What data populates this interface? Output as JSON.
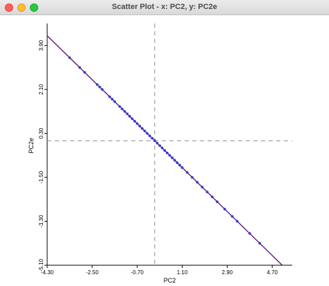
{
  "window": {
    "title": "Scatter Plot - x: PC2, y: PC2e",
    "colors": {
      "close": "#ff5f57",
      "minimize": "#febc2e",
      "maximize": "#28c840"
    }
  },
  "chart_data": {
    "type": "scatter",
    "xlabel": "PC2",
    "ylabel": "PC2e",
    "xlim": [
      -4.3,
      5.5
    ],
    "ylim": [
      -5.1,
      4.8
    ],
    "x_ticks": [
      -4.3,
      -2.5,
      -0.7,
      1.1,
      2.9,
      4.7
    ],
    "x_tick_labels": [
      "-4.30",
      "-2.50",
      "-0.70",
      "1.10",
      "2.90",
      "4.70"
    ],
    "y_ticks": [
      -5.1,
      -3.3,
      -1.5,
      0.3,
      2.1,
      3.9
    ],
    "y_tick_labels": [
      "-5.10",
      "-3.30",
      "-1.50",
      "0.30",
      "2.10",
      "3.90"
    ],
    "mean_lines": {
      "x": 0.0,
      "y": 0.0
    },
    "fit_line": {
      "slope": -1,
      "intercept": 0
    },
    "point_color": "#3a3ad0",
    "line_color": "#5a1a6a",
    "x": [
      -3.4,
      -3.0,
      -2.8,
      -2.3,
      -2.2,
      -2.1,
      -1.8,
      -1.7,
      -1.6,
      -1.4,
      -1.3,
      -1.2,
      -1.1,
      -1.0,
      -0.9,
      -0.8,
      -0.7,
      -0.6,
      -0.5,
      -0.4,
      -0.3,
      -0.2,
      -0.1,
      0.0,
      0.1,
      0.2,
      0.3,
      0.4,
      0.5,
      0.6,
      0.7,
      0.8,
      0.9,
      1.0,
      1.1,
      1.3,
      1.5,
      1.7,
      1.9,
      2.1,
      2.3,
      2.5,
      2.8,
      3.1,
      3.3,
      3.8,
      4.2
    ],
    "y": [
      3.4,
      3.0,
      2.8,
      2.3,
      2.2,
      2.1,
      1.8,
      1.7,
      1.6,
      1.4,
      1.3,
      1.2,
      1.1,
      1.0,
      0.9,
      0.8,
      0.7,
      0.6,
      0.5,
      0.4,
      0.3,
      0.2,
      0.1,
      0.0,
      -0.1,
      -0.2,
      -0.3,
      -0.4,
      -0.5,
      -0.6,
      -0.7,
      -0.8,
      -0.9,
      -1.0,
      -1.1,
      -1.3,
      -1.5,
      -1.7,
      -1.9,
      -2.1,
      -2.3,
      -2.5,
      -2.8,
      -3.1,
      -3.3,
      -3.8,
      -4.2
    ]
  }
}
